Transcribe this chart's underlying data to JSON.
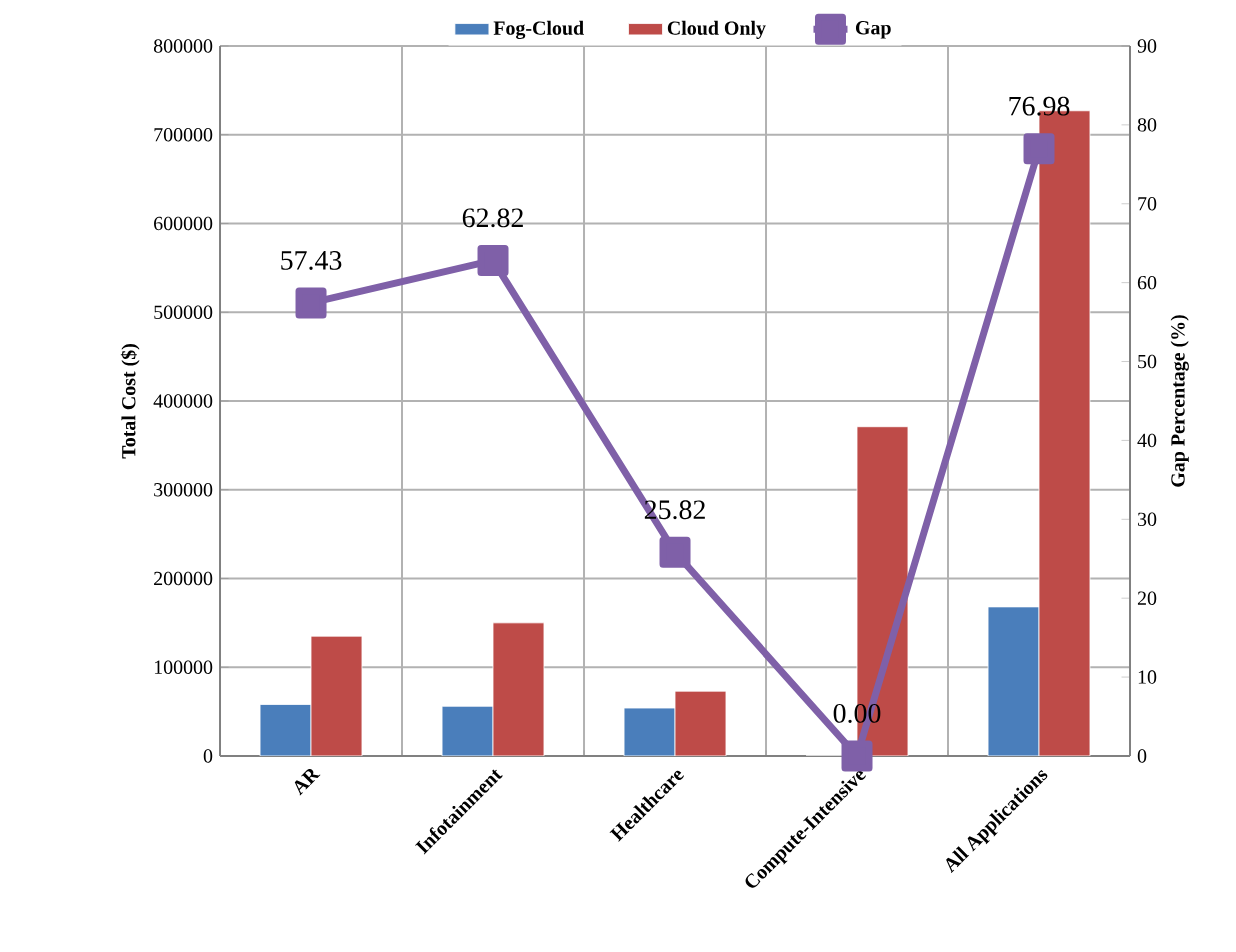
{
  "chart_data": {
    "type": "bar",
    "categories": [
      "AR",
      "Infotainment",
      "Healthcare",
      "Compute-Intensive",
      "All Applications"
    ],
    "ylabel": "Total Cost ($)",
    "y2label": "Gap Percentage (%)",
    "ylim": [
      0,
      800000
    ],
    "yticks": [
      0,
      100000,
      200000,
      300000,
      400000,
      500000,
      600000,
      700000,
      800000
    ],
    "y2lim": [
      0,
      90
    ],
    "y2ticks": [
      0,
      10,
      20,
      30,
      40,
      50,
      60,
      70,
      80,
      90
    ],
    "grid": true,
    "legend": "top",
    "series": [
      {
        "name": "Fog-Cloud",
        "color": "#4a7ebb",
        "values": [
          58000,
          56000,
          54000,
          0,
          168000
        ]
      },
      {
        "name": "Cloud Only",
        "color": "#be4b48",
        "values": [
          135000,
          150000,
          73000,
          371000,
          727000
        ]
      },
      {
        "name": "Gap",
        "type": "line",
        "axis": "y2",
        "color": "#7f60a8",
        "marker": "square",
        "values": [
          57.43,
          62.82,
          25.82,
          0.0,
          76.98
        ],
        "value_labels": [
          "57.43",
          "62.82",
          "25.82",
          "0.00",
          "76.98"
        ]
      }
    ]
  }
}
